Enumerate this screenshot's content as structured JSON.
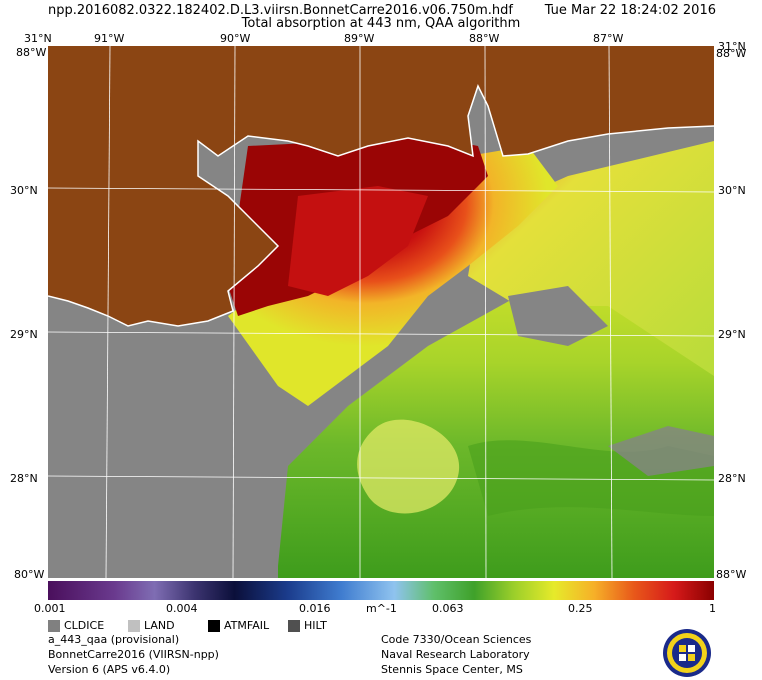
{
  "header": {
    "file": "npp.2016082.0322.182402.D.L3.viirsn.BonnetCarre2016.v06.750m.hdf",
    "title": "Total absorption at 443 nm, QAA algorithm",
    "datetime": "Tue Mar 22 18:24:02 2016"
  },
  "ticks": {
    "top_lon": [
      "91°W",
      "90°W",
      "89°W",
      "88°W",
      "87°W"
    ],
    "lat_right": [
      "30°N",
      "29°N",
      "28°N"
    ],
    "lat_left": [
      "30°N",
      "29°N",
      "28°N"
    ],
    "corner_top_left": "31°N",
    "corner_top_right": "31°N",
    "corner_top_left_b": "88°W",
    "corner_top_right_b": "88°W",
    "corner_bottom_left": "80°W",
    "corner_bottom_right": "88°W"
  },
  "colorbar": {
    "labels": [
      "0.001",
      "0.004",
      "0.016",
      "m^-1",
      "0.063",
      "0.25",
      "1"
    ],
    "colors": {
      "land": "#8b4513",
      "nodata": "#858585",
      "coast": "#ffffff"
    }
  },
  "legend": [
    {
      "label": "CLDICE",
      "color": "#808080"
    },
    {
      "label": "LAND",
      "color": "#c0c0c0"
    },
    {
      "label": "ATMFAIL",
      "color": "#000000"
    },
    {
      "label": "HILT",
      "color": "#505050"
    }
  ],
  "footer": {
    "left": [
      "a_443_qaa (provisional)",
      "BonnetCarre2016 (VIIRSN-npp)",
      "Version 6 (APS v6.4.0)"
    ],
    "right": [
      "Code 7330/Ocean Sciences",
      "Naval Research Laboratory",
      "Stennis Space Center, MS"
    ]
  },
  "logo": {
    "icon": "navy-research-lab-seal"
  }
}
